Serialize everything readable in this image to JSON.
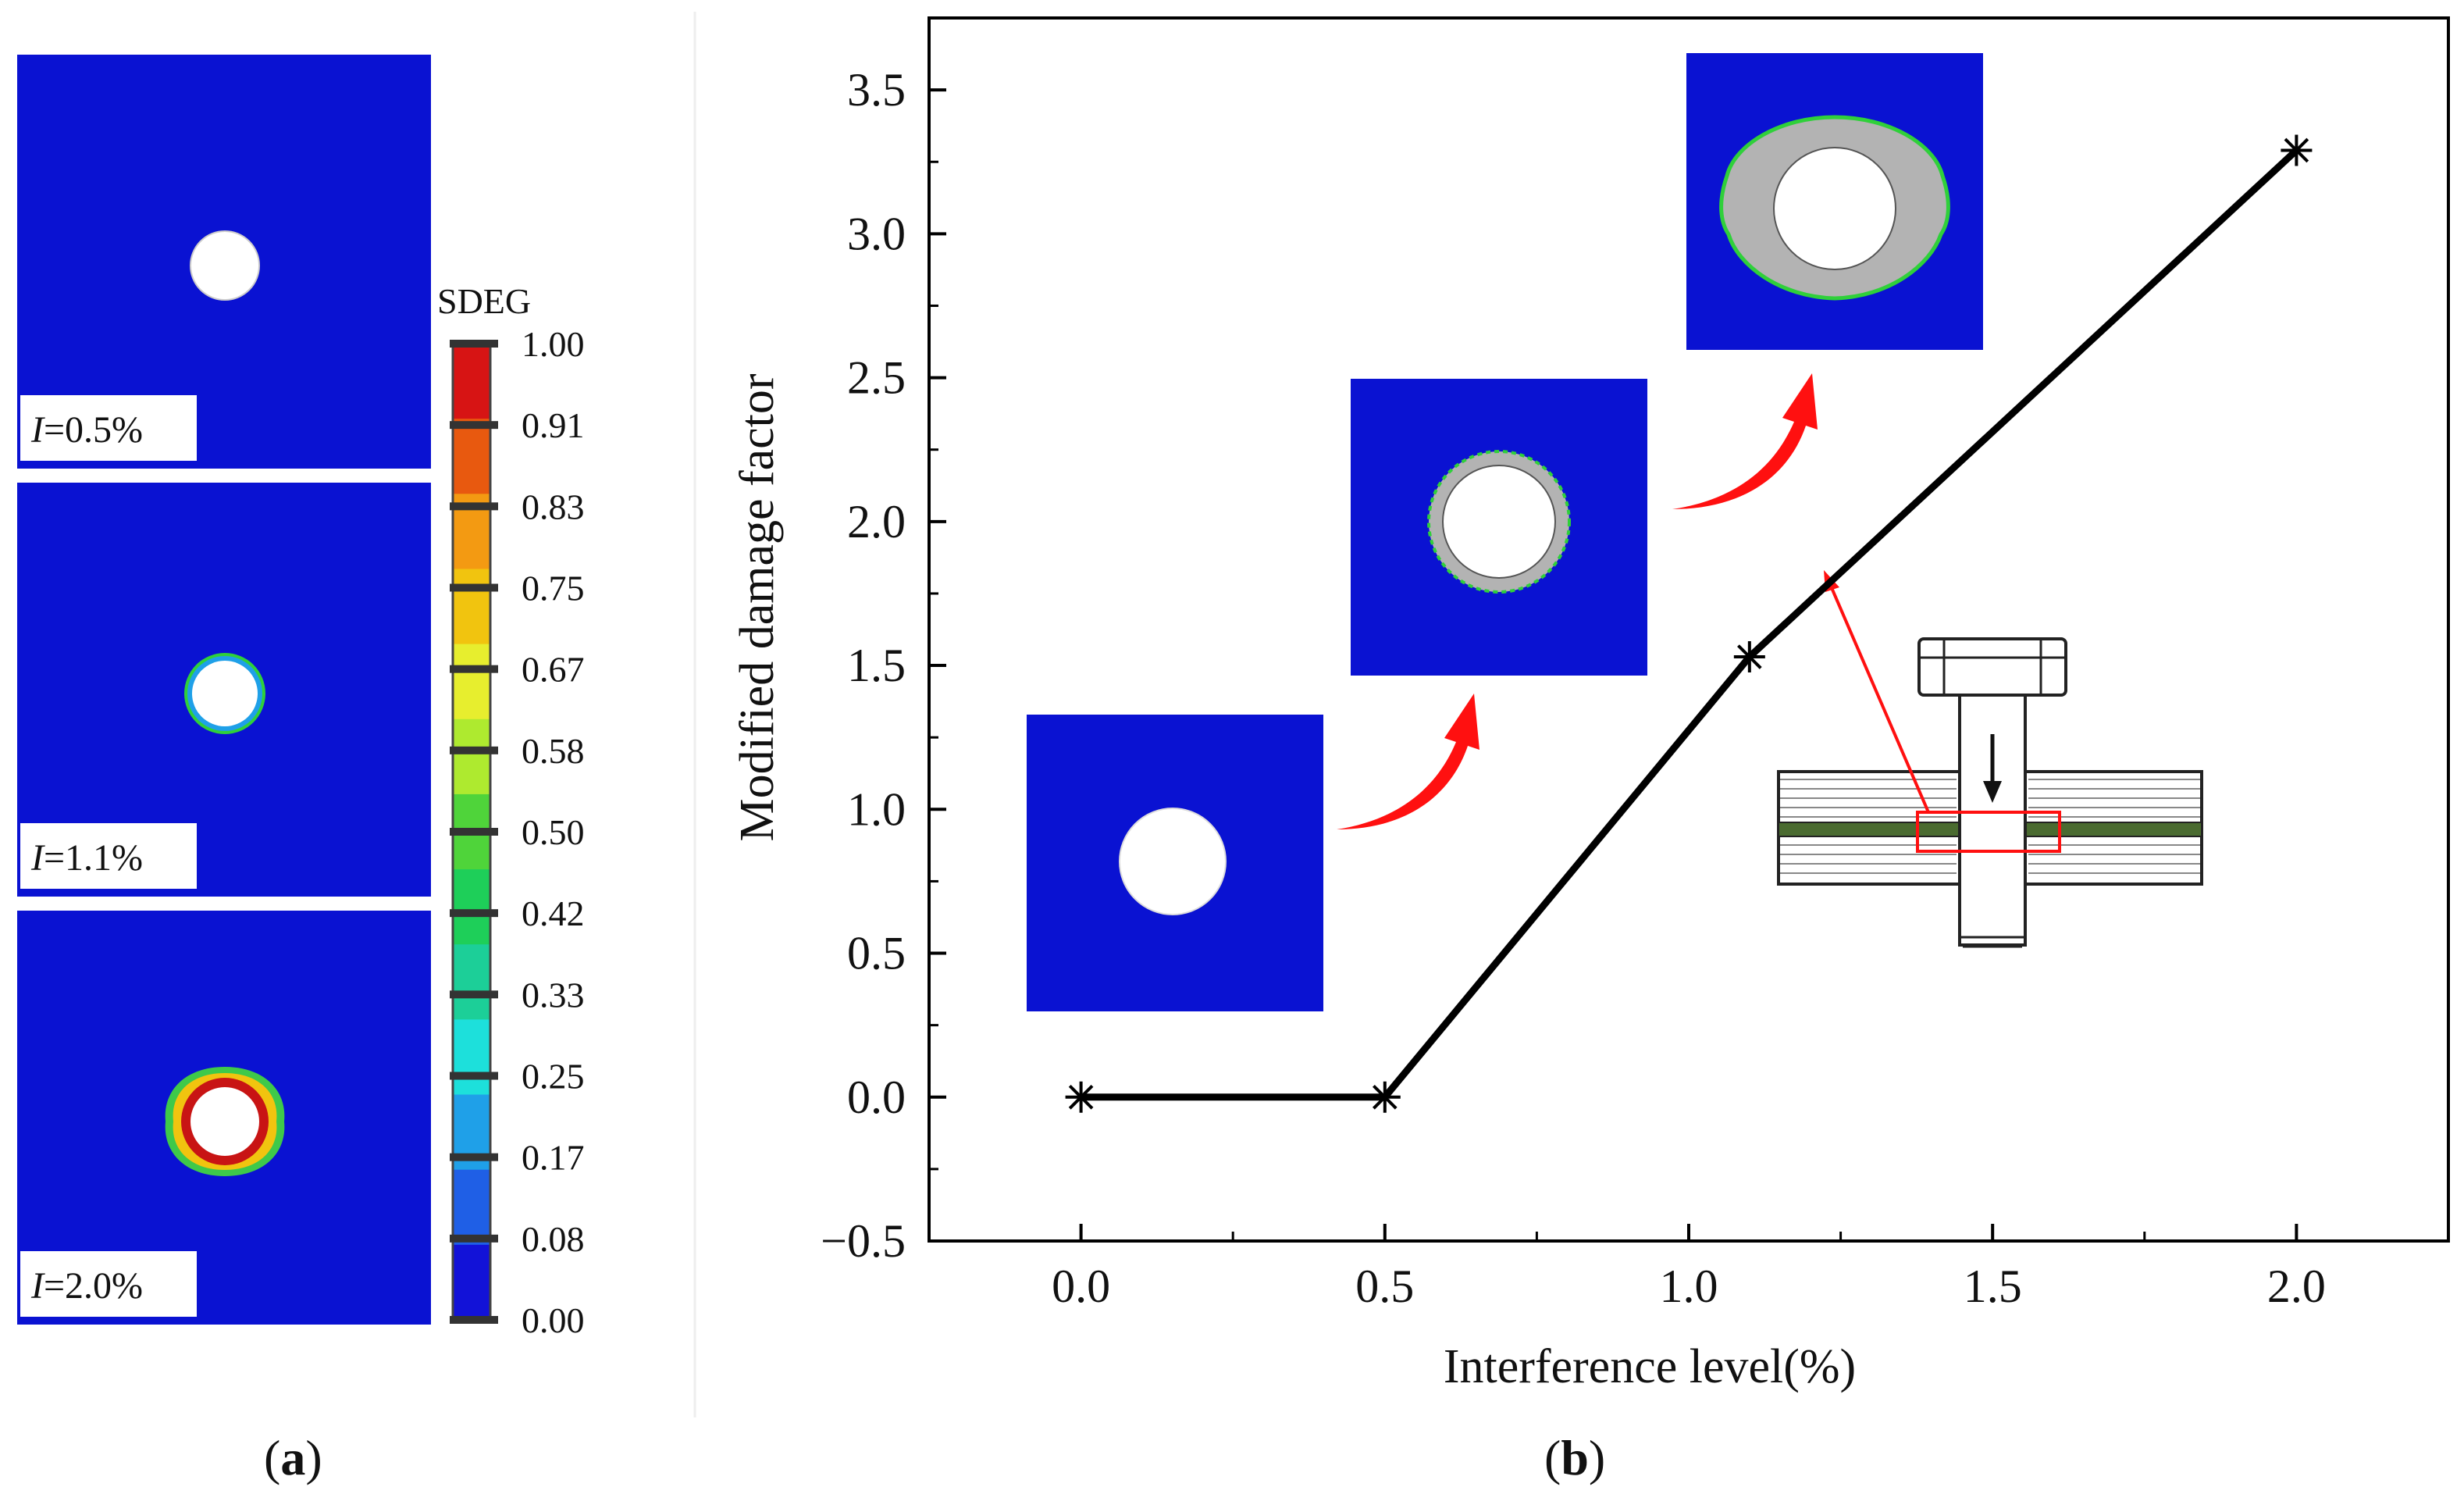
{
  "panel_a": {
    "contour_plots": [
      {
        "label_var": "I",
        "label_value": "=0.5%",
        "damage_state": "none"
      },
      {
        "label_var": "I",
        "label_value": "=1.1%",
        "damage_state": "thin-ring"
      },
      {
        "label_var": "I",
        "label_value": "=2.0%",
        "damage_state": "thick-ring"
      }
    ],
    "colorbar": {
      "title": "SDEG",
      "ticks": [
        "1.00",
        "0.91",
        "0.83",
        "0.75",
        "0.67",
        "0.58",
        "0.50",
        "0.42",
        "0.33",
        "0.25",
        "0.17",
        "0.08",
        "0.00"
      ],
      "colors": [
        "#d71414",
        "#e8590f",
        "#f39a12",
        "#f1c40f",
        "#e7ee2e",
        "#aeea2f",
        "#4fd43a",
        "#1ecf59",
        "#1ccf98",
        "#1de0db",
        "#1fa0e8",
        "#1f5fe6",
        "#1212d8"
      ]
    },
    "caption": "(a)",
    "caption_letter": "a"
  },
  "panel_b": {
    "caption": "(b)",
    "caption_letter": "b",
    "insets": [
      "undamaged",
      "moderate-damage",
      "severe-damage"
    ]
  },
  "chart_data": {
    "type": "line",
    "title": "",
    "xlabel": "Interference level(%)",
    "ylabel": "Modified damage factor",
    "x": [
      0.0,
      0.5,
      1.1,
      2.0
    ],
    "series": [
      {
        "name": "Modified damage factor",
        "values": [
          0.0,
          0.0,
          1.53,
          3.29
        ],
        "marker": "asterisk",
        "color": "#000000"
      }
    ],
    "xlim": [
      -0.25,
      2.25
    ],
    "ylim": [
      -0.5,
      3.75
    ],
    "xticks": [
      0.0,
      0.5,
      1.0,
      1.5,
      2.0
    ],
    "xtick_labels": [
      "0.0",
      "0.5",
      "1.0",
      "1.5",
      "2.0"
    ],
    "yticks": [
      -0.5,
      0.0,
      0.5,
      1.0,
      1.5,
      2.0,
      2.5,
      3.0,
      3.5
    ],
    "ytick_labels": [
      "−0.5",
      "0.0",
      "0.5",
      "1.0",
      "1.5",
      "2.0",
      "2.5",
      "3.0",
      "3.5"
    ],
    "grid": false,
    "legend": "none"
  },
  "colors": {
    "plate_blue": "#0a12d2",
    "damage_gray": "#b3b3b3",
    "arrow_red": "#ff1010",
    "green_layer": "#4a6b30"
  }
}
